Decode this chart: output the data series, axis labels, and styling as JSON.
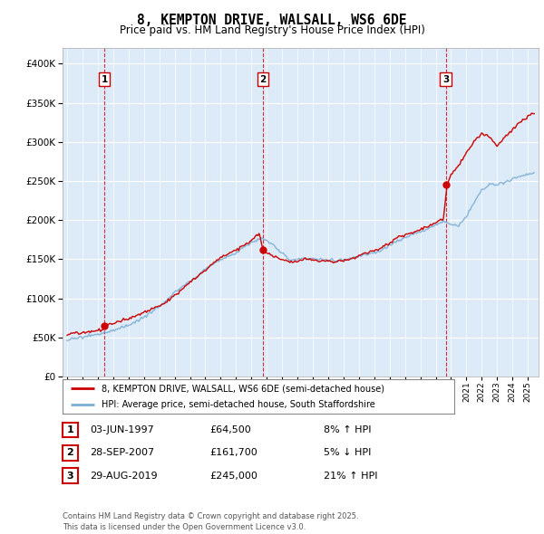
{
  "title": "8, KEMPTON DRIVE, WALSALL, WS6 6DE",
  "subtitle": "Price paid vs. HM Land Registry's House Price Index (HPI)",
  "legend_line1": "8, KEMPTON DRIVE, WALSALL, WS6 6DE (semi-detached house)",
  "legend_line2": "HPI: Average price, semi-detached house, South Staffordshire",
  "footer": "Contains HM Land Registry data © Crown copyright and database right 2025.\nThis data is licensed under the Open Government Licence v3.0.",
  "transactions": [
    {
      "num": 1,
      "date": "03-JUN-1997",
      "price": 64500,
      "year": 1997.42,
      "pct": "8%",
      "dir": "↑"
    },
    {
      "num": 2,
      "date": "28-SEP-2007",
      "price": 161700,
      "year": 2007.75,
      "pct": "5%",
      "dir": "↓"
    },
    {
      "num": 3,
      "date": "29-AUG-2019",
      "price": 245000,
      "year": 2019.66,
      "pct": "21%",
      "dir": "↑"
    }
  ],
  "hpi_color": "#7aaed4",
  "price_color": "#cc0000",
  "dot_color": "#cc0000",
  "vline_color": "#cc0000",
  "bg_plot": "#ddeaf7",
  "bg_fig": "#ffffff",
  "grid_color": "#ffffff",
  "ylim": [
    0,
    420000
  ],
  "xlim_start": 1994.7,
  "xlim_end": 2025.7
}
